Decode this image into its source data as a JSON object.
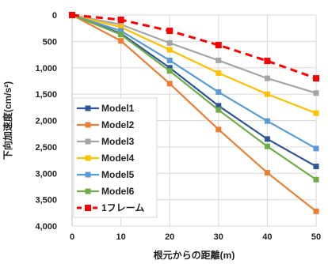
{
  "chart_data": {
    "type": "line",
    "xlabel": "根元からの距離(m)",
    "ylabel": "下向加速度(cm/s²)",
    "x": [
      0,
      10,
      20,
      30,
      40,
      50
    ],
    "xlim": [
      0,
      50
    ],
    "ylim": [
      0,
      4000
    ],
    "y_reversed": true,
    "x_tick_labels": [
      "0",
      "10",
      "20",
      "30",
      "40",
      "50"
    ],
    "y_tick_labels": [
      "0",
      "500",
      "1,000",
      "1,500",
      "2,000",
      "2,500",
      "3,000",
      "3,500",
      "4,000"
    ],
    "grid": true,
    "legend_position": "bottom-left",
    "series": [
      {
        "name": "Model1",
        "color": "#2F5597",
        "dashed": false,
        "values": [
          0,
          350,
          1000,
          1720,
          2350,
          2870
        ]
      },
      {
        "name": "Model2",
        "color": "#ED7D31",
        "dashed": false,
        "values": [
          0,
          490,
          1300,
          2170,
          2990,
          3720
        ]
      },
      {
        "name": "Model3",
        "color": "#A5A5A5",
        "dashed": false,
        "values": [
          0,
          180,
          530,
          860,
          1200,
          1480
        ]
      },
      {
        "name": "Model4",
        "color": "#FFC000",
        "dashed": false,
        "values": [
          0,
          230,
          660,
          1100,
          1500,
          1860
        ]
      },
      {
        "name": "Model5",
        "color": "#5B9BD5",
        "dashed": false,
        "values": [
          0,
          300,
          860,
          1460,
          2010,
          2530
        ]
      },
      {
        "name": "Model6",
        "color": "#70AD47",
        "dashed": false,
        "values": [
          0,
          370,
          1060,
          1800,
          2490,
          3120
        ]
      },
      {
        "name": "1フレーム",
        "color": "#FF0000",
        "dashed": true,
        "values": [
          0,
          90,
          300,
          570,
          870,
          1200
        ]
      }
    ]
  }
}
